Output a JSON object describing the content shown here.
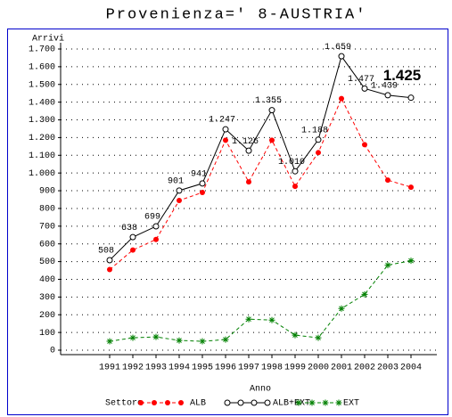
{
  "chart_data": {
    "type": "line",
    "title": "Provenienza=' 8-AUSTRIA'",
    "y_label": "Arrivi",
    "x_label": "Anno",
    "legend_title": "Settore",
    "categories": [
      "1991",
      "1992",
      "1993",
      "1994",
      "1995",
      "1996",
      "1997",
      "1998",
      "1999",
      "2000",
      "2001",
      "2002",
      "2003",
      "2004"
    ],
    "series": [
      {
        "name": "ALB",
        "color": "#ff0000",
        "values": [
          455,
          565,
          625,
          845,
          890,
          1185,
          950,
          1185,
          925,
          1115,
          1420,
          1160,
          960,
          920
        ]
      },
      {
        "name": "ALB+EXT",
        "color": "#000000",
        "values": [
          508,
          638,
          699,
          901,
          941,
          1247,
          1126,
          1355,
          1010,
          1188,
          1659,
          1477,
          1439,
          1425
        ],
        "value_labels": [
          "508",
          "638",
          "699",
          "901",
          "941",
          "1.247",
          "1.126",
          "1.355",
          "1.010",
          "1.188",
          "1.659",
          "1.477",
          "1.439",
          "1.425"
        ]
      },
      {
        "name": "EXT",
        "color": "#008000",
        "values": [
          50,
          70,
          75,
          55,
          50,
          60,
          175,
          170,
          85,
          70,
          235,
          315,
          480,
          505
        ]
      }
    ],
    "ylim": [
      0,
      1700
    ],
    "yticks": [
      0,
      100,
      200,
      300,
      400,
      500,
      600,
      700,
      800,
      900,
      {
        "value": 1000,
        "label": "1.000"
      },
      {
        "value": 1100,
        "label": "1.100"
      },
      {
        "value": 1200,
        "label": "1.200"
      },
      {
        "value": 1300,
        "label": "1.300"
      },
      {
        "value": 1400,
        "label": "1.400"
      },
      {
        "value": 1500,
        "label": "1.500"
      },
      {
        "value": 1600,
        "label": "1.600"
      },
      {
        "value": 1700,
        "label": "1.700"
      }
    ],
    "grid": true
  }
}
